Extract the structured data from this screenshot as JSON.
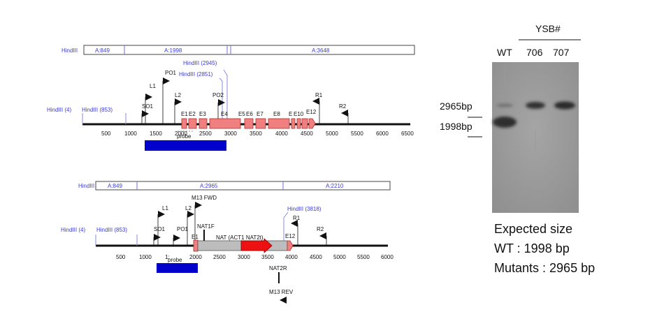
{
  "map_wt": {
    "fragments": [
      {
        "enzyme": "HindIII",
        "label": "A:849"
      },
      {
        "label": "A:1998"
      },
      {
        "label": "A:3648"
      }
    ],
    "sites": [
      "HindIII (4)",
      "HindIII (853)",
      "HindIII (2945)",
      "HindIII (2851)"
    ],
    "primers": [
      "L1",
      "SO1",
      "PO1",
      "L2",
      "PO2",
      "R1",
      "R2"
    ],
    "exons": [
      "E1",
      "E2",
      "E3",
      "E4",
      "E5",
      "E6",
      "E7",
      "E8",
      "E",
      "E10",
      "E12"
    ],
    "probe": "probe",
    "ticks": [
      "500",
      "1000",
      "1500",
      "2000",
      "2500",
      "3000",
      "3500",
      "4000",
      "4500",
      "5000",
      "5500",
      "6000",
      "6500"
    ]
  },
  "map_mut": {
    "fragments": [
      {
        "enzyme": "HindIII",
        "label": "A:849"
      },
      {
        "label": "A:2965"
      },
      {
        "label": "A:2210"
      }
    ],
    "sites": [
      "HindIII (4)",
      "HindIII (853)",
      "HindIII (3818)"
    ],
    "primers": [
      "L1",
      "L2",
      "SO1",
      "PO1",
      "M13 FWD",
      "NAT1F",
      "R1",
      "R2",
      "NAT2R",
      "M13 REV"
    ],
    "exons": [
      "E1",
      "E12"
    ],
    "cassette": "NAT (ACT1 NAT2t)",
    "probe": "probe",
    "tick_partial": "1:",
    "ticks": [
      "500",
      "1000",
      "2000",
      "2500",
      "3000",
      "3500",
      "4000",
      "4500",
      "5000",
      "5500",
      "6000"
    ]
  },
  "gel": {
    "group_label": "YSB#",
    "lanes": [
      "WT",
      "706",
      "707"
    ],
    "markers": [
      "2965bp",
      "1998bp"
    ]
  },
  "expected": {
    "title": "Expected size",
    "wt": "WT :  1998 bp",
    "mut": "Mutants : 2965 bp"
  },
  "colors": {
    "site_text": "#3b3bd6",
    "exon": "#f08080",
    "cassette": "#bdbdbd",
    "nat_arrow": "#ee1111",
    "probe": "#0000cc"
  }
}
